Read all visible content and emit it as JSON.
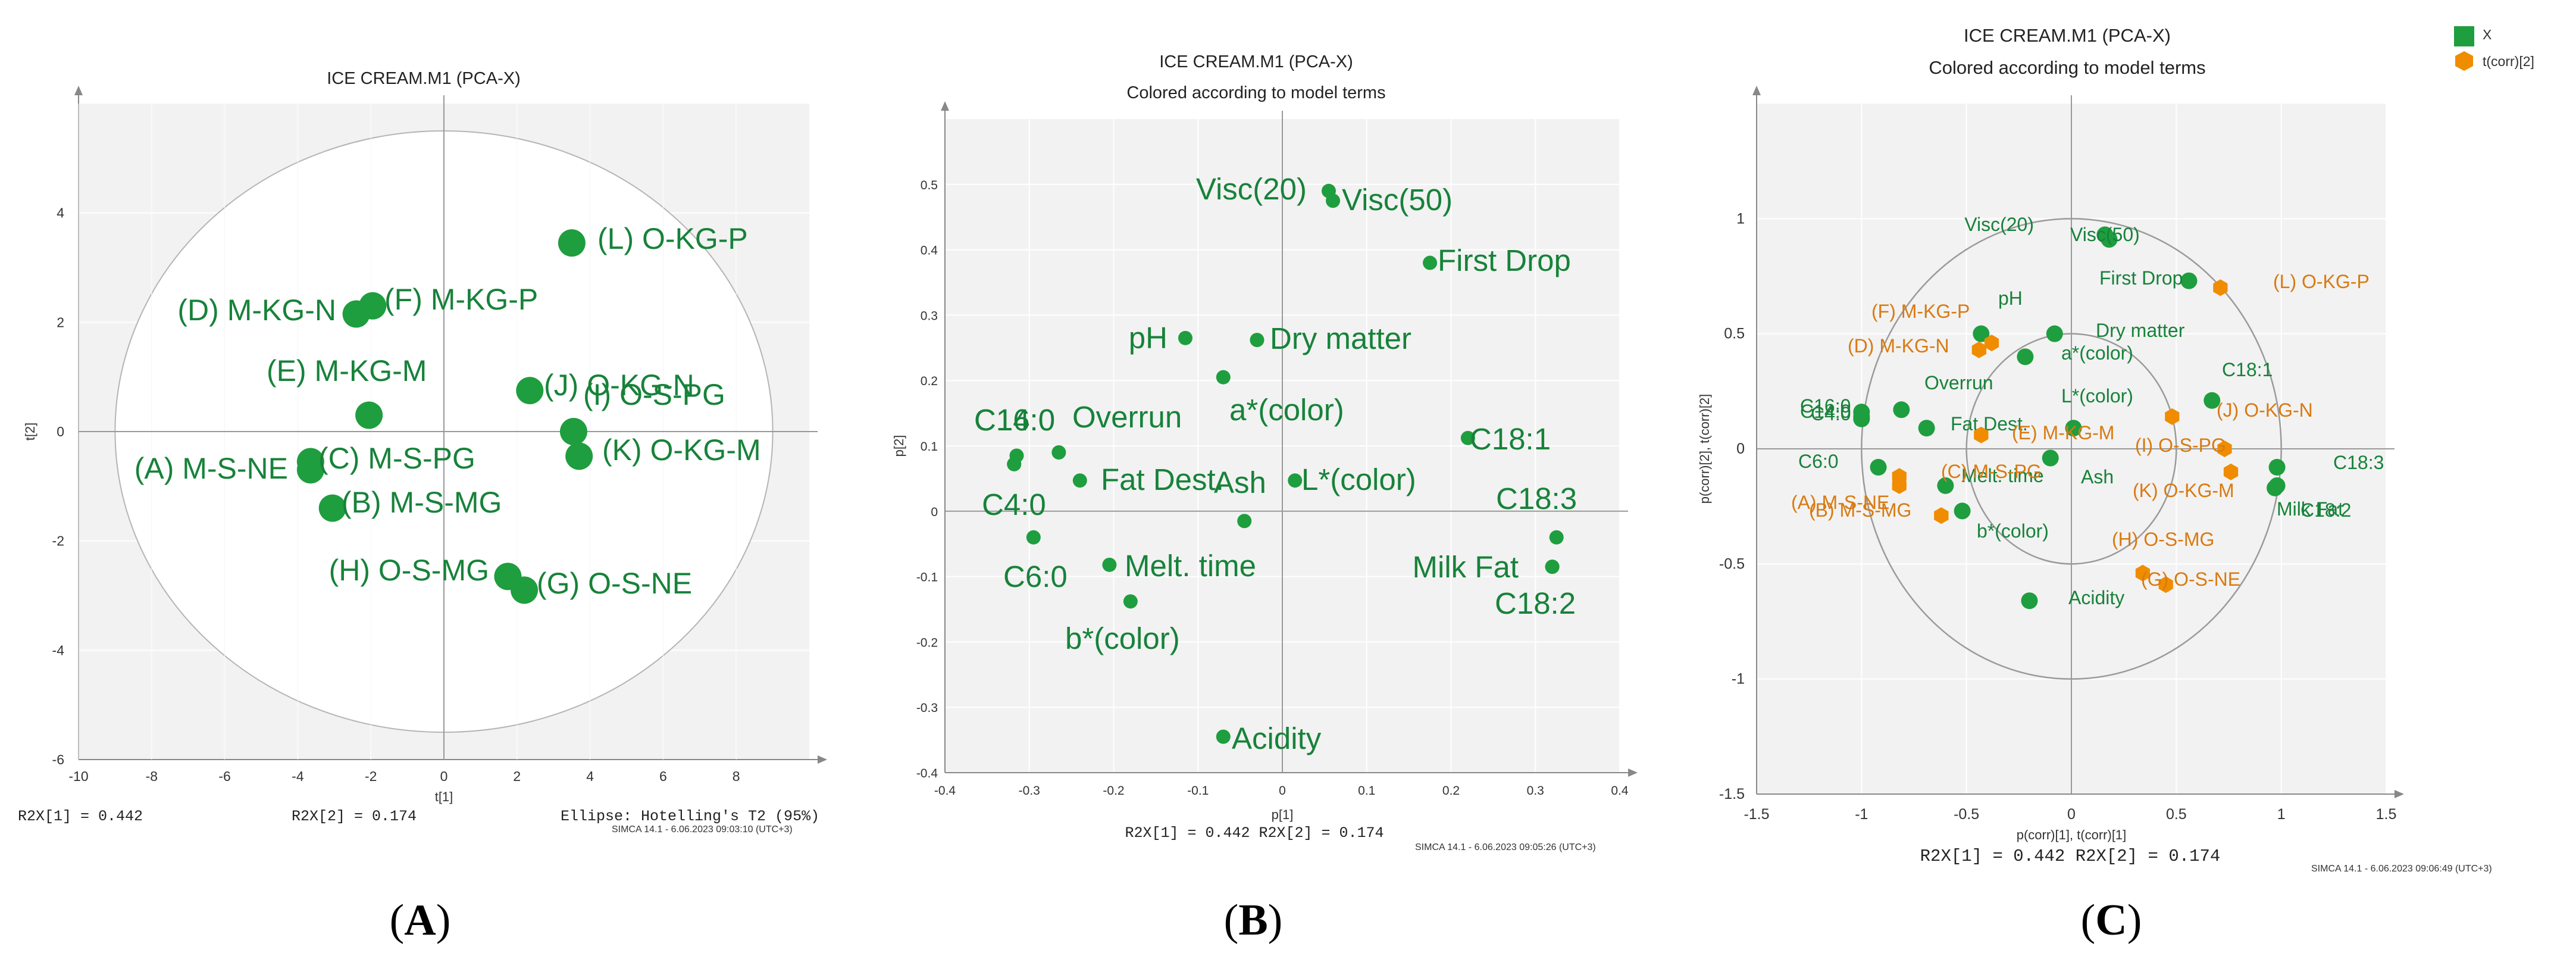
{
  "colors": {
    "green": "#1e9e3e",
    "green_text": "#17823a",
    "orange": "#f08c00",
    "orange_text": "#d97a10",
    "plot_bg": "#f2f2f2",
    "grid": "#ffffff"
  },
  "chart_data": [
    {
      "id": "A",
      "type": "scatter",
      "title": "ICE CREAM.M1 (PCA-X)",
      "subtitle": "",
      "xlabel": "t[1]",
      "ylabel": "t[2]",
      "xlim": [
        -10,
        10
      ],
      "ylim": [
        -6,
        6
      ],
      "xticks": [
        -10,
        -8,
        -6,
        -4,
        -2,
        0,
        2,
        4,
        6,
        8
      ],
      "yticks": [
        -6,
        -4,
        -2,
        0,
        2,
        4
      ],
      "footer_left": "R2X[1] = 0.442",
      "footer_mid": "R2X[2] = 0.174",
      "footer_right": "Ellipse: Hotelling's T2 (95%)",
      "watermark": "SIMCA 14.1 - 6.06.2023 09:03:10 (UTC+3)",
      "caption": "A",
      "ellipse": {
        "rx": 9.0,
        "ry": 5.5
      },
      "series": [
        {
          "name": "scores",
          "color": "#1e9e3e",
          "points": [
            {
              "label": "(L) O-KG-P",
              "x": 3.5,
              "y": 3.45
            },
            {
              "label": "(D) M-KG-N",
              "x": -2.4,
              "y": 2.15
            },
            {
              "label": "(F) M-KG-P",
              "x": -1.95,
              "y": 2.3
            },
            {
              "label": "(E) M-KG-M",
              "x": -2.05,
              "y": 0.3
            },
            {
              "label": "(J) O-KG-N",
              "x": 2.35,
              "y": 0.75
            },
            {
              "label": "(I) O-S-PG",
              "x": 3.55,
              "y": 0.0
            },
            {
              "label": "(K) O-KG-M",
              "x": 3.7,
              "y": -0.45
            },
            {
              "label": "(A) M-S-NE",
              "x": -3.65,
              "y": -0.7
            },
            {
              "label": "(C) M-S-PG",
              "x": -3.65,
              "y": -0.55
            },
            {
              "label": "(B) M-S-MG",
              "x": -3.05,
              "y": -1.4
            },
            {
              "label": "(H) O-S-MG",
              "x": 1.75,
              "y": -2.65
            },
            {
              "label": "(G) O-S-NE",
              "x": 2.2,
              "y": -2.9
            }
          ]
        }
      ]
    },
    {
      "id": "B",
      "type": "scatter",
      "title": "ICE CREAM.M1 (PCA-X)",
      "subtitle": "Colored according to model terms",
      "xlabel": "p[1]",
      "ylabel": "p[2]",
      "xlim": [
        -0.4,
        0.4
      ],
      "ylim": [
        -0.4,
        0.6
      ],
      "xticks": [
        -0.4,
        -0.3,
        -0.2,
        -0.1,
        0,
        0.1,
        0.2,
        0.3,
        0.4
      ],
      "yticks": [
        -0.4,
        -0.3,
        -0.2,
        -0.1,
        0,
        0.1,
        0.2,
        0.3,
        0.4,
        0.5
      ],
      "footer_mid": "R2X[1] = 0.442 R2X[2] = 0.174",
      "watermark": "SIMCA 14.1 - 6.06.2023 09:05:26 (UTC+3)",
      "caption": "B",
      "series": [
        {
          "name": "loadings",
          "color": "#1e9e3e",
          "points": [
            {
              "label": "Visc(20)",
              "x": 0.055,
              "y": 0.49
            },
            {
              "label": "Visc(50)",
              "x": 0.06,
              "y": 0.475
            },
            {
              "label": "First Drop",
              "x": 0.175,
              "y": 0.38
            },
            {
              "label": "pH",
              "x": -0.115,
              "y": 0.265
            },
            {
              "label": "Dry matter",
              "x": -0.03,
              "y": 0.262
            },
            {
              "label": "a*(color)",
              "x": -0.07,
              "y": 0.205
            },
            {
              "label": "C18:1",
              "x": 0.22,
              "y": 0.112
            },
            {
              "label": "C16:0",
              "x": -0.315,
              "y": 0.085
            },
            {
              "label": "C14:0",
              "x": -0.318,
              "y": 0.072
            },
            {
              "label": "Overrun",
              "x": -0.265,
              "y": 0.09
            },
            {
              "label": "Fat Dest.",
              "x": -0.24,
              "y": 0.047
            },
            {
              "label": "Ash",
              "x": -0.045,
              "y": -0.015
            },
            {
              "label": "L*(color)",
              "x": 0.015,
              "y": 0.047
            },
            {
              "label": "C4:0",
              "x": -0.318,
              "y": 0.072
            },
            {
              "label": "C6:0",
              "x": -0.295,
              "y": -0.04
            },
            {
              "label": "C18:3",
              "x": 0.325,
              "y": -0.04
            },
            {
              "label": "Milk Fat",
              "x": 0.32,
              "y": -0.085
            },
            {
              "label": "C18:2",
              "x": 0.32,
              "y": -0.085
            },
            {
              "label": "Melt. time",
              "x": -0.205,
              "y": -0.082
            },
            {
              "label": "b*(color)",
              "x": -0.18,
              "y": -0.138
            },
            {
              "label": "Acidity",
              "x": -0.07,
              "y": -0.345
            }
          ]
        }
      ]
    },
    {
      "id": "C",
      "type": "scatter",
      "title": "ICE CREAM.M1 (PCA-X)",
      "subtitle": "Colored according to model terms",
      "xlabel": "p(corr)[1], t(corr)[1]",
      "ylabel": "p(corr)[2], t(corr)[2]",
      "xlim": [
        -1.5,
        1.5
      ],
      "ylim": [
        -1.5,
        1.5
      ],
      "xticks": [
        -1.5,
        -1,
        -0.5,
        0,
        0.5,
        1,
        1.5
      ],
      "yticks": [
        -1.5,
        -1,
        -0.5,
        0,
        0.5,
        1
      ],
      "footer_mid": "R2X[1] = 0.442 R2X[2] = 0.174",
      "watermark": "SIMCA 14.1 - 6.06.2023 09:06:49 (UTC+3)",
      "caption": "C",
      "circles": [
        1.0,
        0.5
      ],
      "legend": [
        {
          "label": "X",
          "color": "#1e9e3e",
          "marker": "square"
        },
        {
          "label": "t(corr)[2]",
          "color": "#f08c00",
          "marker": "hexagon"
        }
      ],
      "series": [
        {
          "name": "X",
          "color": "#1e9e3e",
          "points": [
            {
              "label": "Visc(20)",
              "x": 0.16,
              "y": 0.93
            },
            {
              "label": "Visc(50)",
              "x": 0.18,
              "y": 0.91
            },
            {
              "label": "First Drop",
              "x": 0.56,
              "y": 0.73
            },
            {
              "label": "pH",
              "x": -0.43,
              "y": 0.5
            },
            {
              "label": "Dry matter",
              "x": -0.08,
              "y": 0.5
            },
            {
              "label": "a*(color)",
              "x": -0.22,
              "y": 0.4
            },
            {
              "label": "C18:1",
              "x": 0.67,
              "y": 0.21
            },
            {
              "label": "Overrun",
              "x": -0.81,
              "y": 0.17
            },
            {
              "label": "C16:0",
              "x": -1.0,
              "y": 0.16
            },
            {
              "label": "C14:0",
              "x": -1.0,
              "y": 0.14
            },
            {
              "label": "L*(color)",
              "x": 0.01,
              "y": 0.09
            },
            {
              "label": "Fat Dest.",
              "x": -0.69,
              "y": 0.09
            },
            {
              "label": "C4:0",
              "x": -1.0,
              "y": 0.13
            },
            {
              "label": "Ash",
              "x": -0.1,
              "y": -0.04
            },
            {
              "label": "C6:0",
              "x": -0.92,
              "y": -0.08
            },
            {
              "label": "C18:3",
              "x": 0.98,
              "y": -0.08
            },
            {
              "label": "Melt. time",
              "x": -0.6,
              "y": -0.16
            },
            {
              "label": "Milk Fat",
              "x": 0.97,
              "y": -0.17
            },
            {
              "label": "C18:2",
              "x": 0.98,
              "y": -0.16
            },
            {
              "label": "b*(color)",
              "x": -0.52,
              "y": -0.27
            },
            {
              "label": "Acidity",
              "x": -0.2,
              "y": -0.66
            }
          ]
        },
        {
          "name": "t(corr)[2]",
          "color": "#f08c00",
          "points": [
            {
              "label": "(L) O-KG-P",
              "x": 0.71,
              "y": 0.7
            },
            {
              "label": "(F) M-KG-P",
              "x": -0.38,
              "y": 0.46
            },
            {
              "label": "(D) M-KG-N",
              "x": -0.44,
              "y": 0.43
            },
            {
              "label": "(J) O-KG-N",
              "x": 0.48,
              "y": 0.14
            },
            {
              "label": "(E) M-KG-M",
              "x": -0.43,
              "y": 0.06
            },
            {
              "label": "(I) O-S-PG",
              "x": 0.73,
              "y": 0.0
            },
            {
              "label": "(K) O-KG-M",
              "x": 0.76,
              "y": -0.1
            },
            {
              "label": "(C) M-S-PG",
              "x": -0.82,
              "y": -0.12
            },
            {
              "label": "(A) M-S-NE",
              "x": -0.82,
              "y": -0.16
            },
            {
              "label": "(B) M-S-MG",
              "x": -0.62,
              "y": -0.29
            },
            {
              "label": "(H) O-S-MG",
              "x": 0.34,
              "y": -0.54
            },
            {
              "label": "(G) O-S-NE",
              "x": 0.45,
              "y": -0.59
            }
          ]
        }
      ]
    }
  ]
}
